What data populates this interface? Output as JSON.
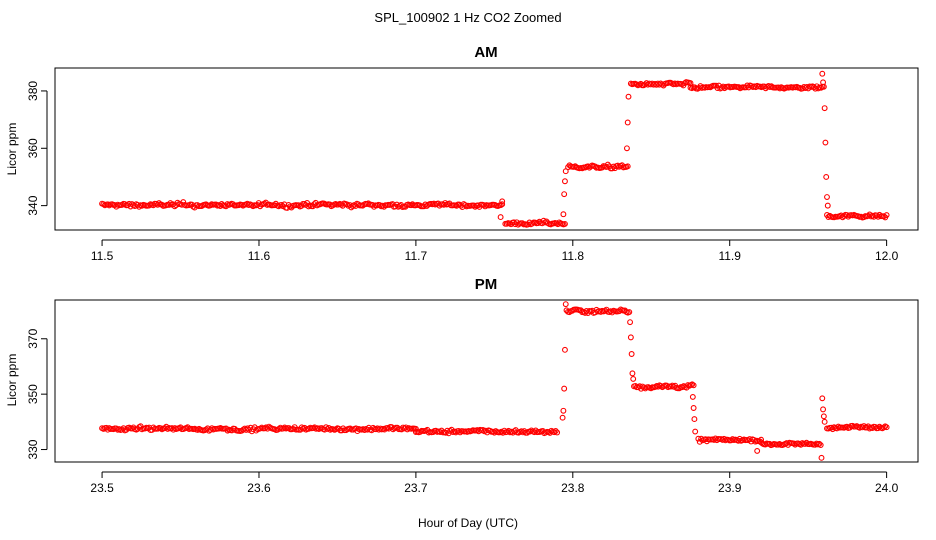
{
  "figure": {
    "title": "SPL_100902  1 Hz CO2 Zoomed",
    "xlabel": "Hour of Day (UTC)",
    "point_color": "#ff0000"
  },
  "chart_data": [
    {
      "type": "scatter",
      "title": "AM",
      "xlabel": "",
      "ylabel": "Licor ppm",
      "xlim": [
        11.47,
        12.02
      ],
      "ylim": [
        331.5,
        388
      ],
      "xticks": [
        11.5,
        11.6,
        11.7,
        11.8,
        11.9,
        12.0
      ],
      "xtick_labels": [
        "11.5",
        "11.6",
        "11.7",
        "11.8",
        "11.9",
        "12.0"
      ],
      "yticks": [
        340,
        360,
        380
      ],
      "ytick_labels": [
        "340",
        "360",
        "380"
      ],
      "grid": false,
      "marker": "open-circle",
      "segments": [
        {
          "x": [
            11.5,
            11.755
          ],
          "y": 340.2,
          "noise": 0.8
        },
        {
          "x": [
            11.757,
            11.795
          ],
          "y": 333.8,
          "noise": 0.7
        },
        {
          "x": [
            11.797,
            11.835
          ],
          "y": 353.5,
          "noise": 0.8
        },
        {
          "x": [
            11.837,
            11.875
          ],
          "y": 382.3,
          "noise": 0.8
        },
        {
          "x": [
            11.875,
            11.96
          ],
          "y": 381.2,
          "noise": 0.7
        },
        {
          "x": [
            11.962,
            12.0
          ],
          "y": 336.5,
          "noise": 0.7
        }
      ],
      "transition_points": [
        {
          "x": 11.754,
          "y": 336.0
        },
        {
          "x": 11.755,
          "y": 341.5
        },
        {
          "x": 11.794,
          "y": 337.0
        },
        {
          "x": 11.7945,
          "y": 344.0
        },
        {
          "x": 11.795,
          "y": 348.5
        },
        {
          "x": 11.7955,
          "y": 352.0
        },
        {
          "x": 11.8345,
          "y": 360.0
        },
        {
          "x": 11.835,
          "y": 369.0
        },
        {
          "x": 11.8355,
          "y": 378.0
        },
        {
          "x": 11.959,
          "y": 386.0
        },
        {
          "x": 11.9595,
          "y": 383.0
        },
        {
          "x": 11.9605,
          "y": 374.0
        },
        {
          "x": 11.961,
          "y": 362.0
        },
        {
          "x": 11.9615,
          "y": 350.0
        },
        {
          "x": 11.962,
          "y": 343.0
        },
        {
          "x": 11.9625,
          "y": 340.0
        }
      ]
    },
    {
      "type": "scatter",
      "title": "PM",
      "xlabel": "",
      "ylabel": "Licor ppm",
      "xlim": [
        23.47,
        24.02
      ],
      "ylim": [
        325.5,
        384
      ],
      "xticks": [
        23.5,
        23.6,
        23.7,
        23.8,
        23.9,
        24.0
      ],
      "xtick_labels": [
        "23.5",
        "23.6",
        "23.7",
        "23.8",
        "23.9",
        "24.0"
      ],
      "yticks": [
        330,
        350,
        370
      ],
      "ytick_labels": [
        "330",
        "350",
        "370"
      ],
      "grid": false,
      "marker": "open-circle",
      "segments": [
        {
          "x": [
            23.5,
            23.7
          ],
          "y": 337.5,
          "noise": 0.8
        },
        {
          "x": [
            23.7,
            23.79
          ],
          "y": 336.5,
          "noise": 0.8
        },
        {
          "x": [
            23.796,
            23.836
          ],
          "y": 380.0,
          "noise": 0.8
        },
        {
          "x": [
            23.839,
            23.877
          ],
          "y": 352.8,
          "noise": 0.8
        },
        {
          "x": [
            23.88,
            23.92
          ],
          "y": 333.5,
          "noise": 0.7
        },
        {
          "x": [
            23.92,
            23.958
          ],
          "y": 332.0,
          "noise": 0.7
        },
        {
          "x": [
            23.962,
            24.0
          ],
          "y": 338.0,
          "noise": 0.7
        }
      ],
      "transition_points": [
        {
          "x": 23.7935,
          "y": 341.5
        },
        {
          "x": 23.794,
          "y": 344.0
        },
        {
          "x": 23.7945,
          "y": 352.0
        },
        {
          "x": 23.795,
          "y": 366.0
        },
        {
          "x": 23.7955,
          "y": 382.5
        },
        {
          "x": 23.8365,
          "y": 376.0
        },
        {
          "x": 23.837,
          "y": 370.5
        },
        {
          "x": 23.8375,
          "y": 364.5
        },
        {
          "x": 23.838,
          "y": 357.5
        },
        {
          "x": 23.8385,
          "y": 355.5
        },
        {
          "x": 23.8765,
          "y": 349.0
        },
        {
          "x": 23.877,
          "y": 345.0
        },
        {
          "x": 23.8775,
          "y": 341.0
        },
        {
          "x": 23.878,
          "y": 336.5
        },
        {
          "x": 23.9175,
          "y": 329.5
        },
        {
          "x": 23.9585,
          "y": 327.0
        },
        {
          "x": 23.959,
          "y": 348.5
        },
        {
          "x": 23.9595,
          "y": 344.5
        },
        {
          "x": 23.96,
          "y": 342.0
        },
        {
          "x": 23.9605,
          "y": 340.0
        }
      ]
    }
  ]
}
